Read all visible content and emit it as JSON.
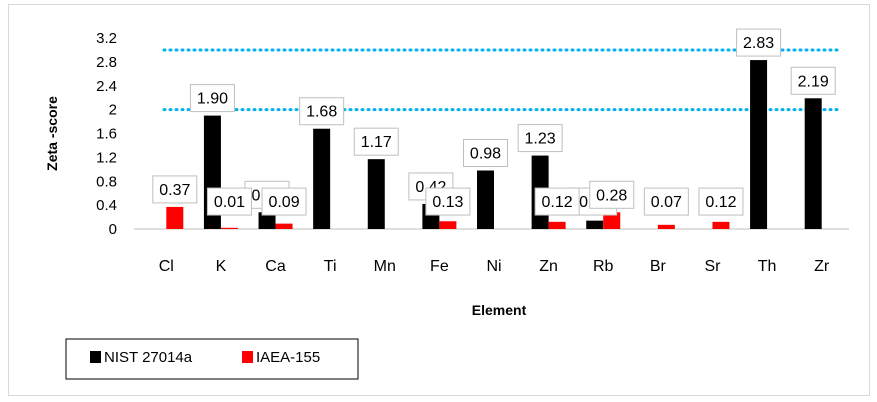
{
  "chart_data": {
    "type": "bar",
    "xlabel": "Element",
    "ylabel": "Zeta -score",
    "categories": [
      "Cl",
      "K",
      "Ca",
      "Ti",
      "Mn",
      "Fe",
      "Ni",
      "Zn",
      "Rb",
      "Br",
      "Sr",
      "Th",
      "Zr"
    ],
    "series": [
      {
        "name": "NIST 27014a",
        "color": "#000000",
        "values": [
          null,
          1.9,
          0.28,
          1.68,
          1.17,
          0.42,
          0.98,
          1.23,
          0.14,
          null,
          null,
          2.83,
          2.19
        ],
        "labels": [
          "",
          "1.90",
          "0.28",
          "1.68",
          "1.17",
          "0.42",
          "0.98",
          "1.23",
          "0.14",
          "",
          "",
          "2.83",
          "2.19"
        ]
      },
      {
        "name": "IAEA-155",
        "color": "#ff0000",
        "values": [
          0.37,
          0.01,
          0.09,
          null,
          null,
          0.13,
          null,
          0.12,
          0.28,
          0.07,
          0.12,
          null,
          null
        ],
        "labels": [
          "0.37",
          "0.01",
          "0.09",
          "",
          "",
          "0.13",
          "",
          "0.12",
          "0.28",
          "0.07",
          "0.12",
          "",
          ""
        ]
      }
    ],
    "yticks": [
      "0",
      "0.4",
      "0.8",
      "1.2",
      "1.6",
      "2",
      "2.4",
      "2.8",
      "3.2"
    ],
    "ylim": [
      0,
      3.2
    ],
    "reference_lines": [
      {
        "value": 2,
        "color": "#00b0f0",
        "style": "dotted"
      },
      {
        "value": 3,
        "color": "#00b0f0",
        "style": "dotted"
      }
    ],
    "grid": false,
    "legend_position": "bottom-left"
  }
}
